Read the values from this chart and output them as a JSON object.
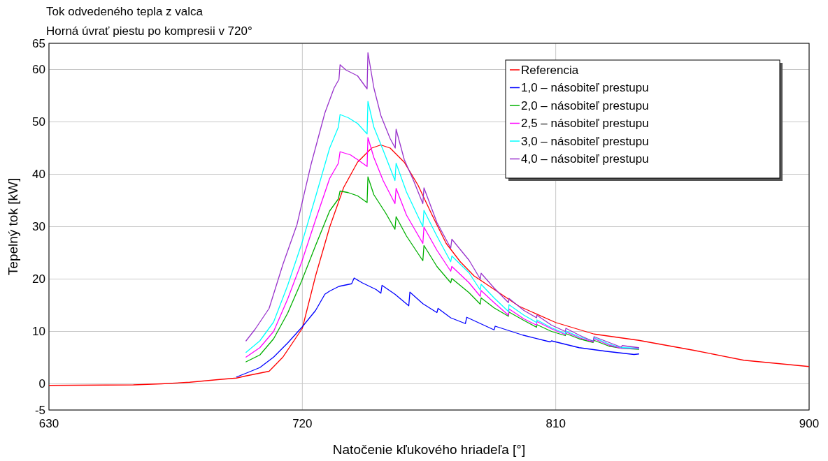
{
  "chart_data": {
    "type": "line",
    "title": "Tok odvedeného tepla z valca",
    "subtitle": "Horná úvrať piestu po kompresii v 720°",
    "xlabel": "Natočenie kľukového hriadeľa [°]",
    "ylabel": "Tepelný tok [kW]",
    "xlim": [
      630,
      900
    ],
    "xticks": [
      630,
      720,
      810,
      900
    ],
    "ylim": [
      -5,
      65
    ],
    "yticks": [
      -5,
      0,
      10,
      20,
      30,
      40,
      50,
      60,
      65
    ],
    "grid": true,
    "legend": "top right",
    "marker": "none",
    "line_style": "solid",
    "series": [
      {
        "name": "Referencia",
        "color": "#ff0000",
        "x": [
          630,
          660,
          670,
          680,
          690,
          696.6,
          699.9,
          708.2,
          713.1,
          720,
          724.7,
          729.7,
          734.7,
          739.6,
          744.6,
          747.9,
          751.2,
          756.2,
          761.1,
          766.1,
          771.1,
          776.1,
          781,
          786,
          797,
          810,
          823.6,
          839.5,
          859,
          876.8,
          899.9
        ],
        "values": [
          -0.3,
          -0.2,
          0,
          0.3,
          0.8,
          1.1,
          1.5,
          2.4,
          5.1,
          10.6,
          20.6,
          29.9,
          37.5,
          42.3,
          45,
          45.6,
          45,
          42.3,
          37.9,
          32.2,
          26.8,
          23.3,
          20.6,
          18.8,
          14.8,
          11.7,
          9.5,
          8.3,
          6.4,
          4.5,
          3.3
        ]
      },
      {
        "name": "1,0 – násobiteľ prestupu",
        "color": "#0000ff",
        "x": [
          696.6,
          699.9,
          704.9,
          709.8,
          714.8,
          720,
          724.7,
          728,
          729.7,
          733,
          737.5,
          738.4,
          741.2,
          746.2,
          747.9,
          748.3,
          752.9,
          757.8,
          758.2,
          762.8,
          767.8,
          768.2,
          772.7,
          777.9,
          778.4,
          788.1,
          788.5,
          798.3,
          808,
          808.5,
          818.3,
          828,
          837.8,
          839.5
        ],
        "values": [
          1.3,
          2,
          3.1,
          5.1,
          7.8,
          10.9,
          14,
          17.1,
          17.7,
          18.6,
          19.1,
          20.2,
          19.3,
          18,
          17.3,
          18.8,
          17.1,
          14.9,
          17.5,
          15.3,
          13.6,
          14.4,
          12.6,
          11.5,
          12.7,
          10.3,
          11,
          9.3,
          8,
          8.2,
          6.9,
          6.2,
          5.6,
          5.7
        ]
      },
      {
        "name": "2,0 – násobiteľ prestupu",
        "color": "#00b000",
        "x": [
          700,
          704.9,
          709.8,
          714.8,
          719.8,
          724.7,
          729.7,
          732.8,
          733.4,
          736.3,
          739.6,
          743,
          743.3,
          745.4,
          749.6,
          752.9,
          753.3,
          757,
          762.8,
          763.2,
          767.8,
          772.7,
          773.1,
          779.2,
          783.2,
          783.5,
          788.1,
          793.2,
          793.4,
          798.7,
          803.2,
          803.3,
          808.5,
          813.4,
          813.6,
          818.3,
          823.3,
          823.6,
          828.9,
          833.3,
          839.5
        ],
        "values": [
          4.2,
          5.5,
          8.6,
          13.5,
          19.7,
          26.4,
          33,
          35.3,
          36.8,
          36.5,
          35.9,
          34.6,
          39.5,
          36.1,
          32.6,
          29.5,
          31.9,
          28.2,
          23.5,
          26.4,
          22.4,
          19.3,
          20.1,
          17.4,
          15.2,
          16.4,
          14.5,
          12.9,
          13.7,
          12.1,
          10.8,
          11.3,
          10,
          9.2,
          9.6,
          8.6,
          7.9,
          8.3,
          7.2,
          6.8,
          6.6
        ]
      },
      {
        "name": "2,5 – násobiteľ prestupu",
        "color": "#ff00ff",
        "x": [
          700,
          704.9,
          709.8,
          714.8,
          719.8,
          724.7,
          729.7,
          732.8,
          733.4,
          737.1,
          739.6,
          743,
          743.3,
          745.4,
          748.7,
          752.9,
          753.3,
          757,
          762.8,
          763.2,
          767.8,
          772.7,
          773.1,
          779.2,
          783.2,
          783.5,
          788.1,
          793.2,
          793.4,
          798.7,
          803.2,
          803.3,
          808.5,
          813.4,
          813.6,
          818.3,
          823.3,
          823.6,
          828.9,
          833.3,
          839.5
        ],
        "values": [
          5.1,
          6.9,
          10,
          16.2,
          23.3,
          31.3,
          39.2,
          42.1,
          44.3,
          43.7,
          42.8,
          41.5,
          47,
          43.2,
          38.8,
          34.4,
          37.3,
          32.2,
          26.8,
          29.9,
          25.5,
          21.5,
          22.4,
          19.3,
          16.7,
          17.8,
          15.5,
          13.1,
          14.3,
          12.4,
          11.2,
          11.9,
          10.5,
          9.4,
          9.9,
          8.8,
          8,
          8.6,
          7.4,
          6.8,
          6.7
        ]
      },
      {
        "name": "3,0 – násobiteľ prestupu",
        "color": "#00ffff",
        "x": [
          700,
          704.9,
          709.8,
          714.8,
          719.8,
          724.7,
          729.7,
          732.8,
          733.4,
          736.3,
          739.6,
          743,
          743.3,
          745.4,
          748.7,
          752.9,
          753.3,
          757,
          762.8,
          763.2,
          767.8,
          772.7,
          773.1,
          779.2,
          783.2,
          783.5,
          788.1,
          793.2,
          793.4,
          798.7,
          803.2,
          803.3,
          808.5,
          813.4,
          813.6,
          818.3,
          823.3,
          823.6,
          828.9,
          833.3,
          839.5
        ],
        "values": [
          6,
          8.2,
          11.8,
          18.8,
          26.8,
          35.7,
          45,
          49,
          51.4,
          50.8,
          49.7,
          47.7,
          53.9,
          49,
          44.6,
          38.8,
          42.1,
          36.6,
          30,
          33.1,
          28.2,
          23.3,
          24.4,
          21.2,
          17.9,
          19,
          16.4,
          13.8,
          15.1,
          13.1,
          11.7,
          12.2,
          10.7,
          9.6,
          10.1,
          9,
          8.2,
          8.8,
          7.6,
          6.9,
          6.8
        ]
      },
      {
        "name": "4,0 – násobiteľ prestupu",
        "color": "#9933cc",
        "x": [
          700,
          703.2,
          708.2,
          713.1,
          718.1,
          723.1,
          728,
          731.3,
          733,
          733.4,
          735.5,
          739.6,
          743,
          743.3,
          745.4,
          747.9,
          751.2,
          753,
          753.3,
          756.2,
          759.5,
          762.8,
          763.2,
          767.8,
          772.7,
          773.1,
          779.2,
          783.2,
          783.5,
          788.1,
          793.2,
          793.4,
          798.7,
          803.2,
          803.3,
          808.5,
          813.4,
          813.6,
          818.3,
          823.3,
          823.6,
          828.9,
          833.3,
          833.6,
          839.5
        ],
        "values": [
          8.2,
          10.4,
          14.4,
          22.8,
          30.4,
          41.9,
          51.7,
          56.5,
          58.1,
          60.9,
          59.9,
          58.8,
          56.3,
          63.2,
          56.5,
          51.2,
          46.8,
          45,
          48.6,
          42.8,
          38.8,
          34.4,
          37.4,
          30.8,
          25.9,
          27.6,
          23.6,
          20,
          21.1,
          18.3,
          15.5,
          16.3,
          14,
          12.6,
          13.1,
          11.2,
          10,
          10.6,
          9.3,
          8.1,
          9,
          7.9,
          7,
          7.3,
          6.9
        ]
      }
    ]
  }
}
